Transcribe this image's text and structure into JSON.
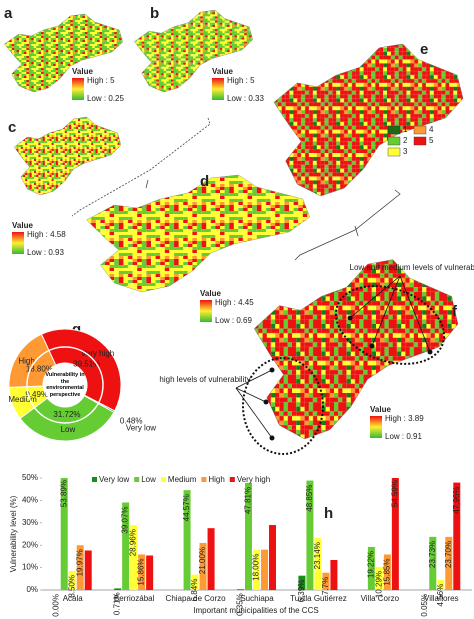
{
  "maps": [
    {
      "label": "a",
      "legend_title": "Value",
      "high": "High : 5",
      "low": "Low : 0.25"
    },
    {
      "label": "b",
      "legend_title": "Value",
      "high": "High : 5",
      "low": "Low : 0.33"
    },
    {
      "label": "c",
      "legend_title": "Value",
      "high": "High : 4.58",
      "low": "Low : 0.93"
    },
    {
      "label": "d",
      "legend_title": "Value",
      "high": "High : 4.45",
      "low": "Low : 0.69"
    },
    {
      "label": "e",
      "classes": [
        "1",
        "2",
        "3",
        "4",
        "5"
      ]
    },
    {
      "label": "f",
      "legend_title": "Value",
      "high": "High : 3.89",
      "low": "Low : 0.91",
      "annotations": [
        "Low and medium levels of vulnerability",
        "high levels of vulnerability"
      ]
    }
  ],
  "chart_data": [
    {
      "type": "donut",
      "panel": "g",
      "title": "Vulnerability in the environmental perspective",
      "categories": [
        "Very low",
        "Low",
        "Medium",
        "High",
        "Very high"
      ],
      "values": [
        0.48,
        31.72,
        9.49,
        18.8,
        39.51
      ],
      "value_labels": [
        "0.48%",
        "31.72%",
        "9.49%",
        "18.80%",
        "39.51%"
      ],
      "colors": [
        "#1a7a1a",
        "#66cc33",
        "#ffff33",
        "#ff9933",
        "#ee1111"
      ]
    },
    {
      "type": "bar",
      "panel": "h",
      "y_label": "Vulnerability level (%)",
      "x_label": "Important municipalities of the CCS",
      "categories": [
        "Acala",
        "Berriozábal",
        "Chiapa de Corzo",
        "Suchiapa",
        "Tuxtla Gutiérrez",
        "Villa Corzo",
        "Villaflores"
      ],
      "ylim": [
        0,
        50
      ],
      "yticks": [
        {
          "value": 0,
          "label": "0%"
        },
        {
          "value": 10,
          "label": "10%"
        },
        {
          "value": 20,
          "label": "20%"
        },
        {
          "value": 30,
          "label": "30%"
        },
        {
          "value": 40,
          "label": "40%"
        },
        {
          "value": 50,
          "label": "50%"
        }
      ],
      "series": [
        {
          "name": "Very low",
          "color": "#1a8c1a",
          "values": [
            0.0,
            0.71,
            0.0,
            0.35,
            6.39,
            0.05,
            0.05
          ],
          "value_labels": [
            "0.00%",
            "0.71%",
            null,
            "0.35%",
            "6.39%",
            null,
            "0.05%"
          ]
        },
        {
          "name": "Low",
          "color": "#66cc33",
          "values": [
            53.89,
            39.07,
            44.57,
            47.81,
            48.85,
            19.22,
            23.73
          ],
          "value_labels": [
            "53.89%",
            "39.07%",
            "44.57%",
            "47.81%",
            "48.85%",
            "19.22%",
            "23.73%"
          ]
        },
        {
          "name": "Medium",
          "color": "#ffff33",
          "values": [
            8.5,
            28.96,
            6.84,
            18.0,
            23.14,
            10.29,
            4.56
          ],
          "value_labels": [
            "8.50%",
            "28.96%",
            "6.84%",
            "18.00%",
            "23.14%",
            "10.29%",
            "4.56%"
          ]
        },
        {
          "name": "High",
          "color": "#ff9933",
          "values": [
            19.97,
            15.86,
            21.0,
            18.0,
            7.7,
            15.85,
            23.7
          ],
          "value_labels": [
            "19.97%",
            "15.86%",
            "21.00%",
            null,
            "7.7%",
            "15.85%",
            "23.70%"
          ]
        },
        {
          "name": "Very high",
          "color": "#ee1111",
          "values": [
            17.64,
            15.4,
            27.6,
            29.0,
            13.4,
            54.59,
            47.96
          ],
          "value_labels": [
            null,
            null,
            null,
            null,
            null,
            "54.59%",
            "47.96%"
          ]
        }
      ]
    }
  ]
}
